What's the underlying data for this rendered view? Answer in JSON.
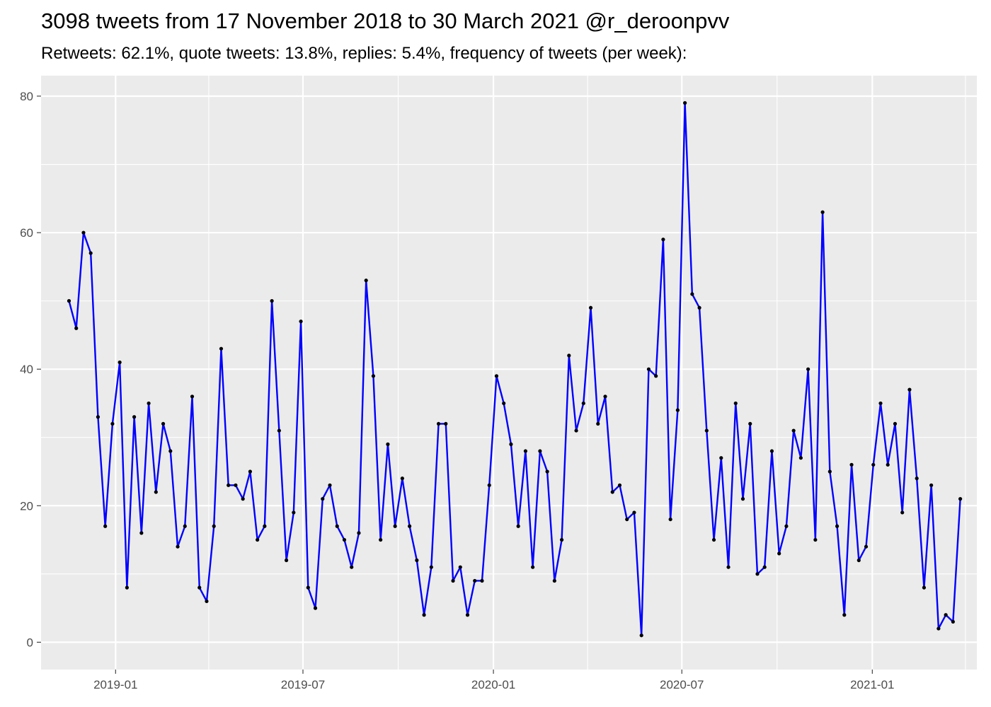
{
  "chart_data": {
    "type": "line",
    "title": "3098 tweets from 17 November 2018 to 30 March 2021 @r_deroonpvv",
    "subtitle": "Retweets: 62.1%, quote tweets: 13.8%, replies: 5.4%, frequency of tweets (per week):",
    "xlabel": "",
    "ylabel": "",
    "x_start": "2018-11-17",
    "x_step_days": 7,
    "xlim": [
      "2018-10-21",
      "2021-04-12"
    ],
    "ylim": [
      -4,
      83
    ],
    "x_ticks": [
      {
        "date": "2019-01-01",
        "label": "2019-01"
      },
      {
        "date": "2019-07-01",
        "label": "2019-07"
      },
      {
        "date": "2020-01-01",
        "label": "2020-01"
      },
      {
        "date": "2020-07-01",
        "label": "2020-07"
      },
      {
        "date": "2021-01-01",
        "label": "2021-01"
      }
    ],
    "x_minor_ticks": [
      "2018-10-01",
      "2019-04-01",
      "2019-10-01",
      "2020-04-01",
      "2020-10-01",
      "2021-04-01"
    ],
    "y_ticks": [
      0,
      20,
      40,
      60,
      80
    ],
    "y_minor_ticks": [
      10,
      30,
      50,
      70
    ],
    "grid": true,
    "line_color": "#0000ff",
    "point_color": "#000000",
    "panel_color": "#ebebeb",
    "series": [
      {
        "values": [
          50,
          46,
          60,
          57,
          33,
          17,
          32,
          41,
          8,
          33,
          16,
          35,
          22,
          32,
          28,
          14,
          17,
          36,
          8,
          6,
          17,
          43,
          23,
          23,
          21,
          25,
          15,
          17,
          50,
          31,
          12,
          19,
          47,
          8,
          5,
          21,
          23,
          17,
          15,
          11,
          16,
          53,
          39,
          15,
          29,
          17,
          24,
          17,
          12,
          4,
          11,
          32,
          32,
          9,
          11,
          4,
          9,
          9,
          23,
          39,
          35,
          29,
          17,
          28,
          11,
          28,
          25,
          9,
          15,
          42,
          31,
          35,
          49,
          32,
          36,
          22,
          23,
          18,
          19,
          1,
          40,
          39,
          59,
          18,
          34,
          79,
          51,
          49,
          31,
          15,
          27,
          11,
          35,
          21,
          32,
          10,
          11,
          28,
          13,
          17,
          31,
          27,
          40,
          15,
          63,
          25,
          17,
          4,
          26,
          12,
          14,
          26,
          35,
          26,
          32,
          19,
          37,
          24,
          8,
          23,
          2,
          4,
          3,
          21
        ]
      }
    ]
  }
}
